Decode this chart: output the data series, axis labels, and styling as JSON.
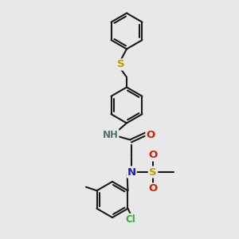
{
  "background_color": "#e8e8e8",
  "bond_color": "#1a1a1a",
  "bond_width": 1.5,
  "atoms": {
    "S_top": {
      "color": "#b8a000",
      "label": "S"
    },
    "S_sulfonyl": {
      "color": "#b8a000",
      "label": "S"
    },
    "N_amide": {
      "color": "#507070",
      "label": "NH"
    },
    "N_sulfonyl": {
      "color": "#1a1acc",
      "label": "N"
    },
    "O_carbonyl": {
      "color": "#cc2200",
      "label": "O"
    },
    "O1_sulfonyl": {
      "color": "#cc2200",
      "label": "O"
    },
    "O2_sulfonyl": {
      "color": "#cc2200",
      "label": "O"
    },
    "Cl": {
      "color": "#22bb22",
      "label": "Cl"
    }
  },
  "figsize": [
    3.0,
    3.0
  ],
  "dpi": 100
}
